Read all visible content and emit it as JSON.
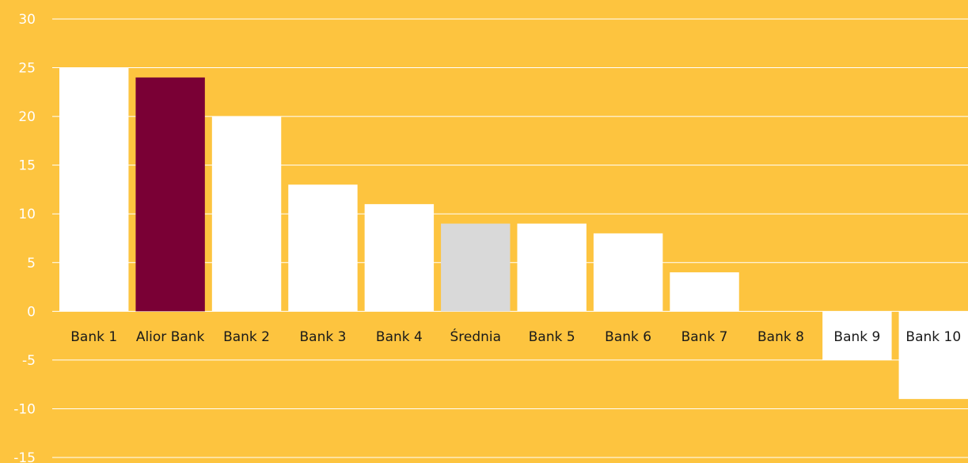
{
  "chart_data": {
    "type": "bar",
    "title": "",
    "xlabel": "",
    "ylabel": "",
    "categories": [
      "Bank 1",
      "Alior Bank",
      "Bank 2",
      "Bank 3",
      "Bank 4",
      "Średnia",
      "Bank 5",
      "Bank 6",
      "Bank 7",
      "Bank 8",
      "Bank 9",
      "Bank 10"
    ],
    "values": [
      25,
      24,
      20,
      13,
      11,
      9,
      9,
      8,
      4,
      0,
      -5,
      -9
    ],
    "ylim": [
      -15,
      30
    ],
    "yticks": [
      30,
      25,
      20,
      15,
      10,
      5,
      0,
      -5,
      -10,
      -15
    ],
    "grid": true,
    "colors": {
      "background": "#FDC43F",
      "default_bar": "#FFFFFF",
      "highlight_bar": "#7A0035",
      "average_bar": "#D9D9D9",
      "gridline": "#FFFFFF",
      "tick_label": "#FFFFFF",
      "category_label": "#1A1A1A"
    },
    "bar_colors": [
      "default_bar",
      "highlight_bar",
      "default_bar",
      "default_bar",
      "default_bar",
      "average_bar",
      "default_bar",
      "default_bar",
      "default_bar",
      "default_bar",
      "default_bar",
      "default_bar"
    ]
  }
}
